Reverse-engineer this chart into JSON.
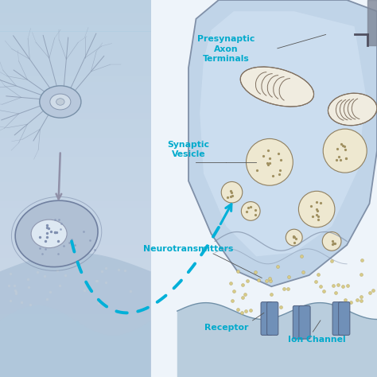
{
  "background_color": "#ffffff",
  "left_bg_color": "#c8d4e4",
  "right_bg_color": "#eef4fa",
  "neuron_soma_fc": "#b8c8dc",
  "neuron_soma_ec": "#7890a8",
  "neuron_nucleus_fc": "#d0dce8",
  "neuron_nucleus_ec": "#8898b0",
  "dendrite_color": "#8898b0",
  "cell_body_fc": "#b0c0d4",
  "cell_body_ec": "#7080a0",
  "cell_nucleus_fc": "#dde8f2",
  "cell_nucleus_ec": "#9098b0",
  "arrow_color": "#9090a8",
  "dashed_arrow_color": "#00b0d8",
  "terminal_fc": "#c0d4e8",
  "terminal_ec": "#8090a8",
  "mito_fc": "#f0ece0",
  "mito_ec": "#807060",
  "vesicle_fc": "#eee8d0",
  "vesicle_ec": "#908060",
  "vesicle_dot_color": "#a09060",
  "nt_dot_color": "#d8cc88",
  "nt_dot_ec": "#b0a060",
  "postsynaptic_fc": "#a8c0d4",
  "postsynaptic_ec": "#7090a8",
  "channel_fc": "#7090b8",
  "channel_ec": "#506080",
  "label_color": "#00aacc",
  "line_color": "#555555",
  "axon_dark": "#505060",
  "axon_shade": "#808898",
  "labels": {
    "presynaptic": "Presynaptic\nAxon\nTerminals",
    "vesicle": "Synaptic\nVesicle",
    "neurotransmitters": "Neurotransmitters",
    "receptor": "Receptor",
    "ion_channel": "Ion Channel"
  }
}
